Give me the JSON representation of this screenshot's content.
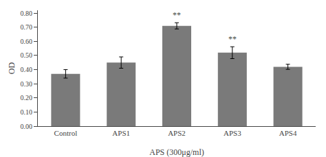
{
  "chart_data": {
    "type": "bar",
    "categories": [
      "Control",
      "APS1",
      "APS2",
      "APS3",
      "APS4"
    ],
    "values": [
      0.37,
      0.45,
      0.71,
      0.52,
      0.42
    ],
    "errors": [
      0.03,
      0.04,
      0.022,
      0.042,
      0.018
    ],
    "color": "#7a7a7a",
    "xlabel": "APS (300μg/ml)",
    "ylabel": "OD",
    "ylim": [
      0.0,
      0.82
    ],
    "yticks": [
      {
        "value": 0.0,
        "label": "0.00"
      },
      {
        "value": 0.1,
        "label": "0.10"
      },
      {
        "value": 0.2,
        "label": "0.20"
      },
      {
        "value": 0.3,
        "label": "0.30"
      },
      {
        "value": 0.4,
        "label": "0.40"
      },
      {
        "value": 0.5,
        "label": "0.50"
      },
      {
        "value": 0.6,
        "label": "0.60"
      },
      {
        "value": 0.7,
        "label": "0.70"
      },
      {
        "value": 0.8,
        "label": "0.80"
      }
    ],
    "annotations": [
      {
        "category": "APS2",
        "text": "**"
      },
      {
        "category": "APS3",
        "text": "**"
      }
    ],
    "grid": false
  }
}
